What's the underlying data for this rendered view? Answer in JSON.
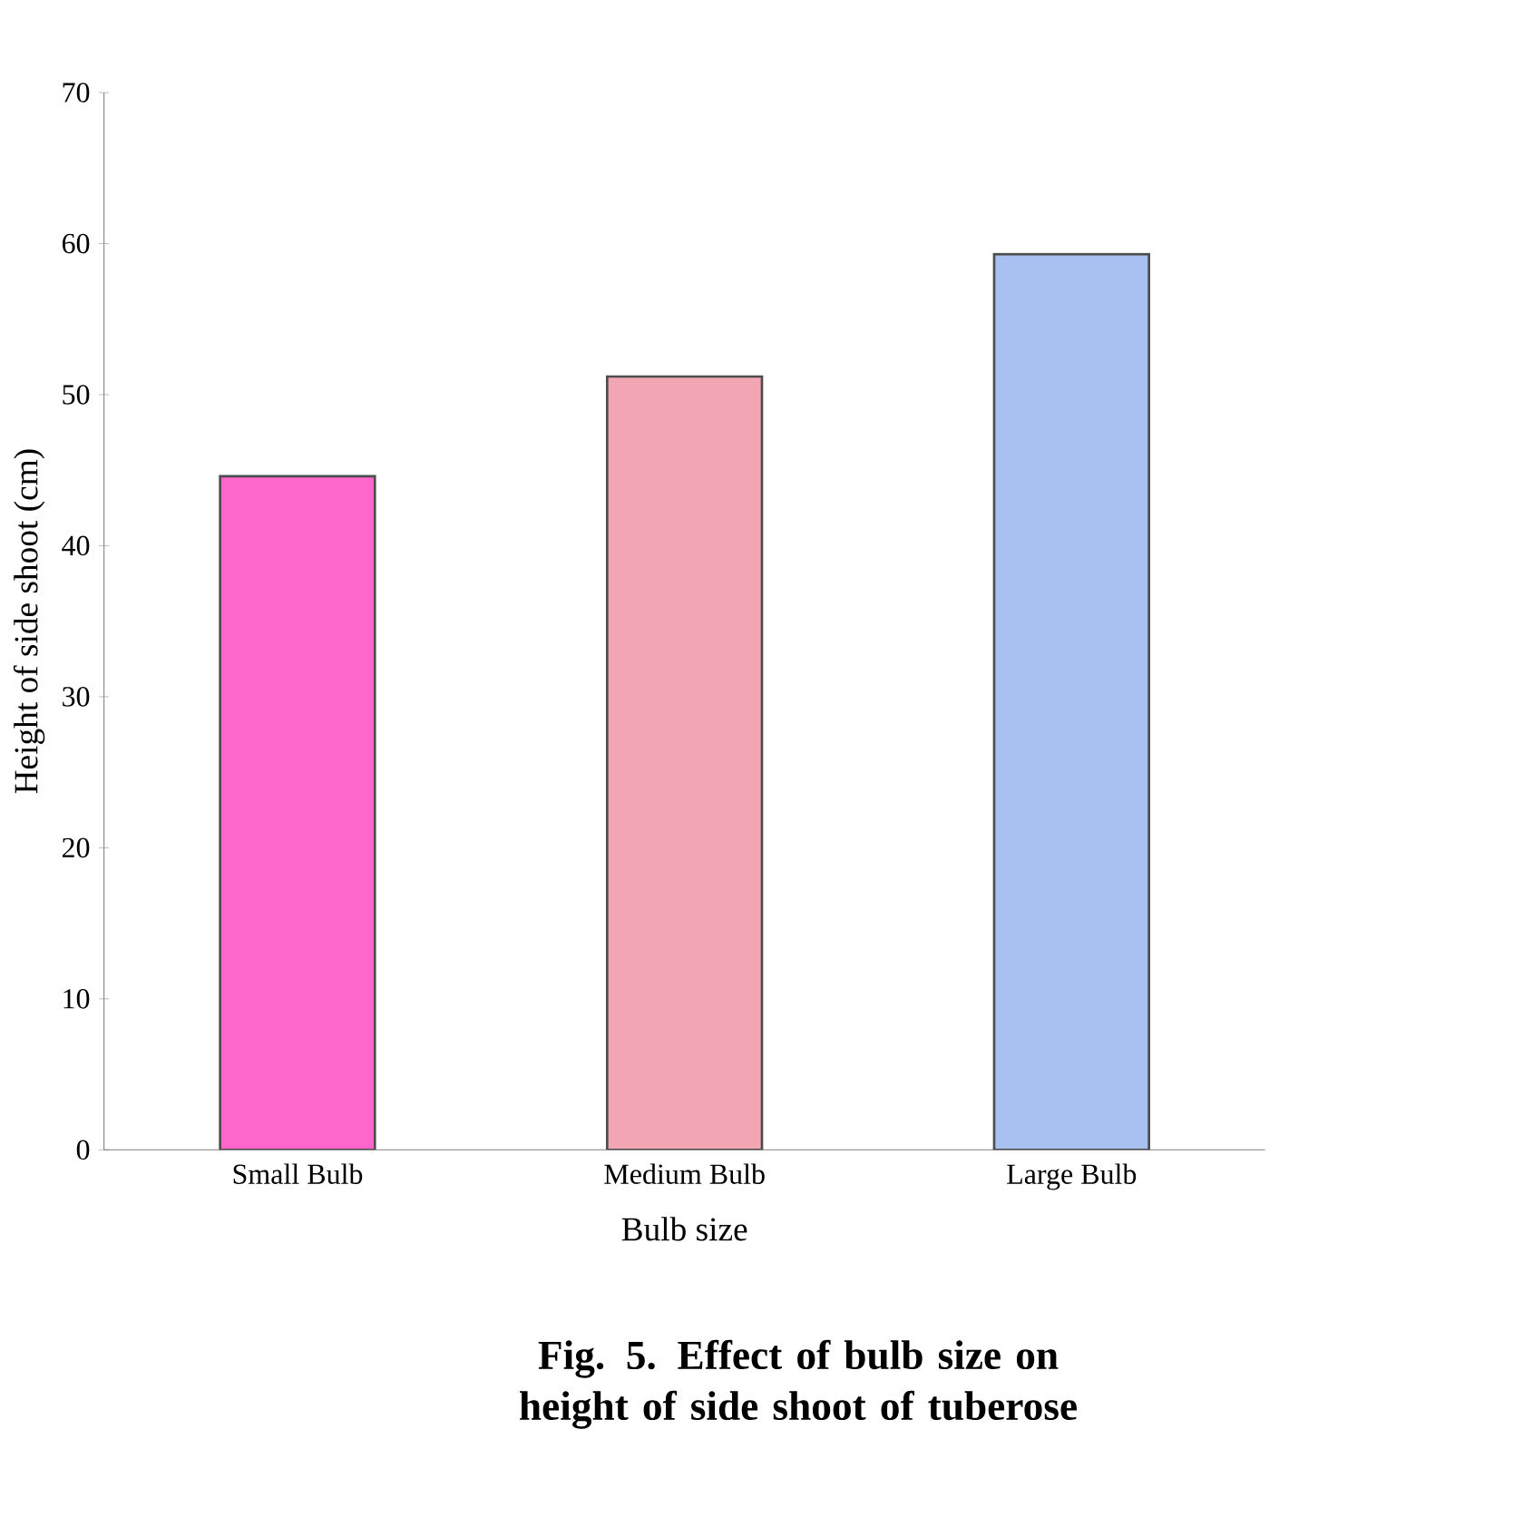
{
  "chart_data": {
    "type": "bar",
    "title": "Fig. 5. Effect of bulb size on height of side  shoot of tuberose",
    "xlabel": "Bulb size",
    "ylabel": "Height of side shoot (cm)",
    "categories": [
      "Small Bulb",
      "Medium Bulb",
      "Large Bulb"
    ],
    "values": [
      44.6,
      51.2,
      59.3
    ],
    "colors": [
      "#ff66cc",
      "#f2a6b4",
      "#a9c1f0"
    ],
    "ylim": [
      0,
      70
    ],
    "yticks": [
      0,
      10,
      20,
      30,
      40,
      50,
      60,
      70
    ],
    "grid": false
  }
}
